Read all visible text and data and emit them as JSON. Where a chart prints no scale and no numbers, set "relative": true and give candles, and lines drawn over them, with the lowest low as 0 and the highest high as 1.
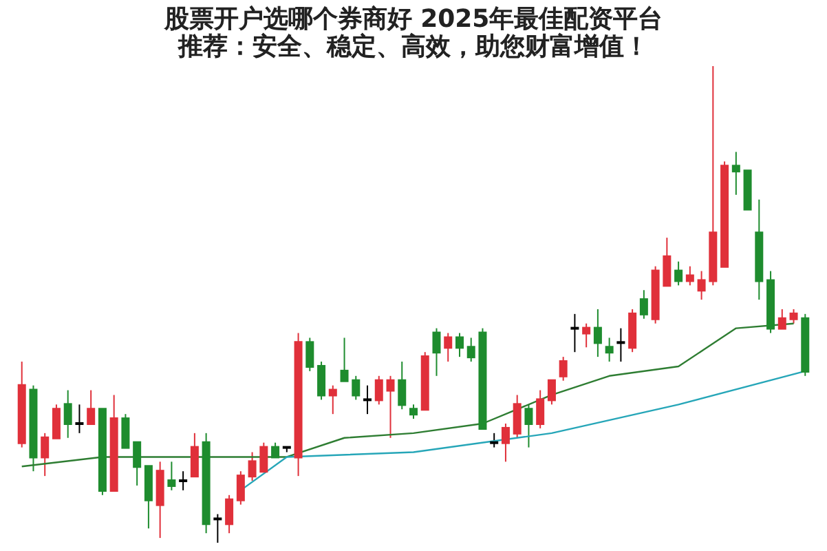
{
  "chart_data": {
    "type": "candlestick",
    "relative": true,
    "title": "股票开户选哪个券商好 2025年最佳配资平台推荐：安全、稳定、高效，助您财富增值！",
    "categories": [
      null,
      null,
      null,
      null,
      null,
      null,
      null,
      null,
      null,
      null,
      null,
      null,
      null,
      null,
      null,
      null,
      null,
      null,
      null,
      null,
      null,
      null,
      null,
      null,
      null,
      null,
      null,
      null,
      null,
      null,
      null,
      null,
      null,
      null,
      null,
      null,
      null,
      null,
      null,
      null,
      null,
      null,
      null,
      null,
      null,
      null,
      null,
      null,
      null,
      null,
      null,
      null,
      null,
      null,
      null,
      null,
      null,
      null,
      null,
      null,
      null,
      null,
      null,
      null,
      null,
      null,
      null,
      null,
      null
    ],
    "ohlc": [
      [
        0.21,
        0.38,
        0.2,
        0.33
      ],
      [
        0.32,
        0.33,
        0.15,
        0.18
      ],
      [
        0.18,
        0.23,
        0.14,
        0.22
      ],
      [
        0.22,
        0.29,
        0.22,
        0.28
      ],
      [
        0.29,
        0.32,
        0.22,
        0.25
      ],
      [
        0.25,
        0.29,
        0.23,
        0.25
      ],
      [
        0.25,
        0.32,
        0.25,
        0.28
      ],
      [
        0.28,
        0.28,
        0.1,
        0.11
      ],
      [
        0.11,
        0.31,
        0.11,
        0.26
      ],
      [
        0.26,
        0.27,
        0.2,
        0.2
      ],
      [
        0.21,
        0.21,
        0.12,
        0.16
      ],
      [
        0.16,
        0.16,
        0.03,
        0.09
      ],
      [
        0.08,
        0.17,
        0.01,
        0.15
      ],
      [
        0.13,
        0.17,
        0.11,
        0.12
      ],
      [
        0.13,
        0.15,
        0.11,
        0.13
      ],
      [
        0.14,
        0.23,
        0.14,
        0.2
      ],
      [
        0.21,
        0.23,
        0.02,
        0.04
      ],
      [
        0.05,
        0.06,
        0,
        0.05
      ],
      [
        0.04,
        0.1,
        0.02,
        0.09
      ],
      [
        0.09,
        0.15,
        0.08,
        0.14
      ],
      [
        0.14,
        0.19,
        0.13,
        0.17
      ],
      [
        0.15,
        0.21,
        0.15,
        0.2
      ],
      [
        0.2,
        0.21,
        0.18,
        0.18
      ],
      [
        0.2,
        0.2,
        0.19,
        0.2
      ],
      [
        0.18,
        0.44,
        0.14,
        0.42
      ],
      [
        0.42,
        0.43,
        0.36,
        0.37
      ],
      [
        0.37,
        0.38,
        0.3,
        0.31
      ],
      [
        0.31,
        0.33,
        0.27,
        0.32
      ],
      [
        0.36,
        0.43,
        0.34,
        0.34
      ],
      [
        0.34,
        0.35,
        0.3,
        0.31
      ],
      [
        0.3,
        0.33,
        0.27,
        0.3
      ],
      [
        0.3,
        0.35,
        0.29,
        0.34
      ],
      [
        0.32,
        0.35,
        0.22,
        0.34
      ],
      [
        0.34,
        0.38,
        0.28,
        0.29
      ],
      [
        0.28,
        0.29,
        0.26,
        0.27
      ],
      [
        0.28,
        0.4,
        0.28,
        0.39
      ],
      [
        0.44,
        0.45,
        0.35,
        0.4
      ],
      [
        0.41,
        0.44,
        0.38,
        0.43
      ],
      [
        0.43,
        0.44,
        0.39,
        0.41
      ],
      [
        0.41,
        0.43,
        0.38,
        0.39
      ],
      [
        0.44,
        0.45,
        0.24,
        0.24
      ],
      [
        0.21,
        0.23,
        0.2,
        0.21
      ],
      [
        0.21,
        0.25,
        0.17,
        0.24
      ],
      [
        0.23,
        0.31,
        0.22,
        0.29
      ],
      [
        0.28,
        0.29,
        0.2,
        0.25
      ],
      [
        0.25,
        0.32,
        0.24,
        0.3
      ],
      [
        0.3,
        0.34,
        0.29,
        0.34
      ],
      [
        0.35,
        0.39,
        0.34,
        0.38
      ],
      [
        0.45,
        0.48,
        0.4,
        0.45
      ],
      [
        0.44,
        0.46,
        0.41,
        0.45
      ],
      [
        0.45,
        0.49,
        0.39,
        0.42
      ],
      [
        0.41,
        0.43,
        0.38,
        0.4
      ],
      [
        0.42,
        0.45,
        0.38,
        0.42
      ],
      [
        0.41,
        0.49,
        0.4,
        0.48
      ],
      [
        0.51,
        0.53,
        0.47,
        0.48
      ],
      [
        0.47,
        0.58,
        0.46,
        0.57
      ],
      [
        0.54,
        0.64,
        0.54,
        0.6
      ],
      [
        0.57,
        0.59,
        0.54,
        0.55
      ],
      [
        0.55,
        0.58,
        0.54,
        0.56
      ],
      [
        0.53,
        0.57,
        0.51,
        0.55
      ],
      [
        0.55,
        1,
        0.54,
        0.65
      ],
      [
        0.58,
        0.8,
        0.58,
        0.79
      ],
      [
        0.79,
        0.82,
        0.73,
        0.78
      ],
      [
        0.78,
        0.78,
        0.7,
        0.7
      ],
      [
        0.65,
        0.72,
        0.51,
        0.55
      ],
      [
        0.55,
        0.57,
        0.44,
        0.45
      ],
      [
        0.45,
        0.49,
        0.45,
        0.47
      ],
      [
        0.47,
        0.49,
        0.46,
        0.48
      ],
      [
        0.47,
        0.48,
        0.35,
        0.36
      ]
    ],
    "colors": [
      "#e0303a",
      "#1e8c2e",
      "#e0303a",
      "#e0303a",
      "#1e8c2e",
      "#000000",
      "#e0303a",
      "#1e8c2e",
      "#e0303a",
      "#1e8c2e",
      "#1e8c2e",
      "#1e8c2e",
      "#e0303a",
      "#1e8c2e",
      "#000000",
      "#e0303a",
      "#1e8c2e",
      "#000000",
      "#e0303a",
      "#e0303a",
      "#e0303a",
      "#e0303a",
      "#1e8c2e",
      "#000000",
      "#e0303a",
      "#1e8c2e",
      "#1e8c2e",
      "#e0303a",
      "#1e8c2e",
      "#1e8c2e",
      "#000000",
      "#e0303a",
      "#e0303a",
      "#1e8c2e",
      "#1e8c2e",
      "#e0303a",
      "#1e8c2e",
      "#e0303a",
      "#1e8c2e",
      "#1e8c2e",
      "#1e8c2e",
      "#000000",
      "#e0303a",
      "#e0303a",
      "#1e8c2e",
      "#e0303a",
      "#e0303a",
      "#e0303a",
      "#000000",
      "#e0303a",
      "#1e8c2e",
      "#1e8c2e",
      "#000000",
      "#e0303a",
      "#1e8c2e",
      "#e0303a",
      "#e0303a",
      "#1e8c2e",
      "#e0303a",
      "#e0303a",
      "#e0303a",
      "#e0303a",
      "#1e8c2e",
      "#1e8c2e",
      "#1e8c2e",
      "#1e8c2e",
      "#e0303a",
      "#e0303a",
      "#1e8c2e"
    ],
    "series": [
      {
        "type": "line",
        "color": "#2e7d32",
        "values": [
          0.16,
          null,
          null,
          null,
          null,
          null,
          null,
          0.18,
          null,
          null,
          null,
          0.18,
          null,
          null,
          null,
          null,
          null,
          0.18,
          null,
          null,
          null,
          null,
          null,
          0.18,
          null,
          null,
          null,
          null,
          0.22,
          null,
          null,
          null,
          null,
          null,
          0.23,
          null,
          null,
          null,
          null,
          null,
          0.25,
          null,
          null,
          null,
          null,
          null,
          0.31,
          null,
          null,
          null,
          null,
          0.35,
          null,
          null,
          null,
          null,
          null,
          0.37,
          null,
          null,
          null,
          null,
          0.45,
          null,
          null,
          null,
          null,
          0.46,
          null
        ]
      },
      {
        "type": "line",
        "color": "#26a6b8",
        "values": [
          null,
          null,
          null,
          null,
          null,
          null,
          null,
          null,
          null,
          null,
          null,
          null,
          null,
          null,
          null,
          null,
          null,
          null,
          null,
          0.11,
          null,
          null,
          null,
          0.18,
          null,
          null,
          null,
          null,
          null,
          null,
          null,
          null,
          null,
          null,
          0.19,
          null,
          null,
          null,
          null,
          null,
          null,
          null,
          null,
          null,
          null,
          null,
          0.23,
          null,
          null,
          null,
          null,
          null,
          null,
          null,
          null,
          null,
          null,
          0.29,
          null,
          null,
          null,
          null,
          null,
          null,
          null,
          null,
          null,
          null,
          0.36
        ]
      }
    ]
  }
}
